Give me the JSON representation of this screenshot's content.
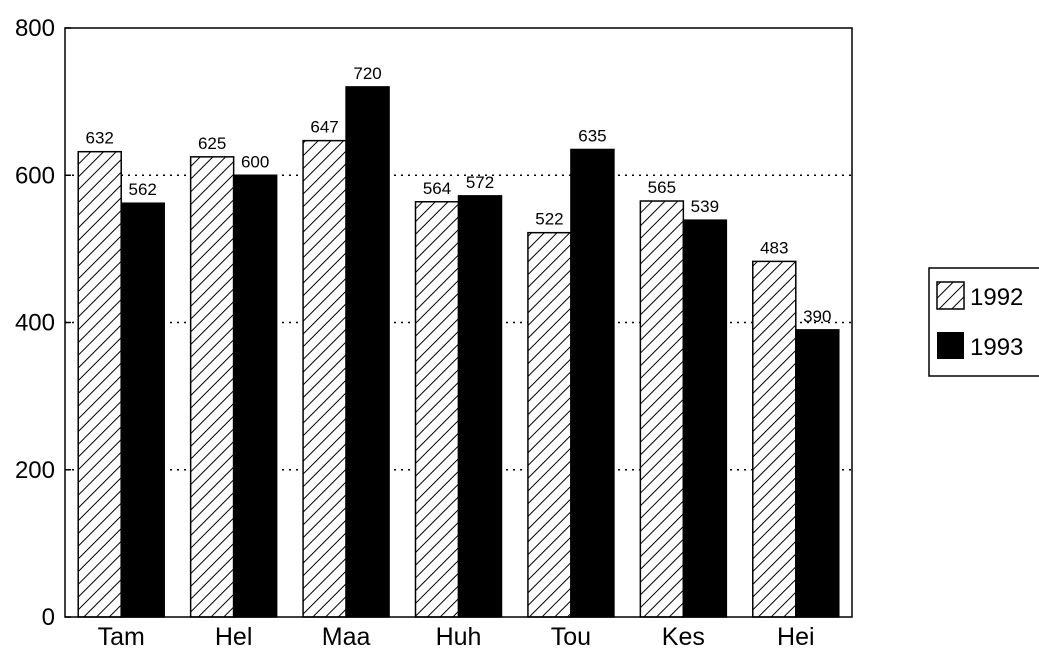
{
  "chart_data": {
    "type": "bar",
    "categories": [
      "Tam",
      "Hel",
      "Maa",
      "Huh",
      "Tou",
      "Kes",
      "Hei"
    ],
    "series": [
      {
        "name": "1992",
        "values": [
          632,
          625,
          647,
          564,
          522,
          565,
          483
        ],
        "pattern": "hatched"
      },
      {
        "name": "1993",
        "values": [
          562,
          600,
          720,
          572,
          635,
          539,
          390
        ],
        "pattern": "solid",
        "color": "#000000"
      }
    ],
    "ylim": [
      0,
      800
    ],
    "yticks": [
      0,
      200,
      400,
      600,
      800
    ],
    "grid": "horizontal dotted",
    "legend_position": "right",
    "title": "",
    "xlabel": "",
    "ylabel": ""
  }
}
